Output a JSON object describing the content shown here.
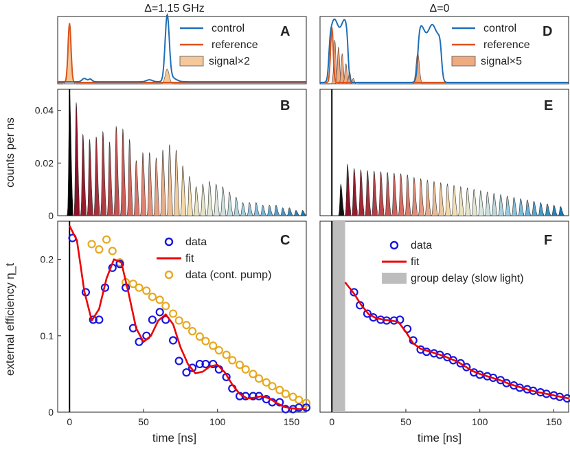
{
  "figure": {
    "titles": {
      "left": "Δ=1.15 GHz",
      "right": "Δ=0"
    },
    "ylabels": {
      "middle": "counts per ns",
      "bottom": "external efficiency η_t"
    },
    "xlabel": "time [ns]"
  },
  "chart_data": [
    {
      "panel": "A",
      "type": "line",
      "title": "Δ=1.15 GHz",
      "xlim": [
        -8,
        160
      ],
      "ylim": [
        0,
        1
      ],
      "legend": [
        "control",
        "reference",
        "signal×2"
      ],
      "legend_position": "top-right",
      "colors": {
        "control": "#1f6fb4",
        "reference": "#d9541a",
        "signal": "#f5c89a"
      },
      "reference_peak_ns": 0,
      "control_peak_ns": 66,
      "signal_peaks_ns": [
        0,
        66
      ]
    },
    {
      "panel": "D",
      "type": "line",
      "title": "Δ=0",
      "xlim": [
        -8,
        160
      ],
      "ylim": [
        0,
        1
      ],
      "legend": [
        "control",
        "reference",
        "signal×5"
      ],
      "legend_position": "top-right",
      "colors": {
        "control": "#1f6fb4",
        "reference": "#d9541a",
        "signal": "#f0aa80"
      },
      "reference_peak_ns": 0,
      "control_pulses_ns": [
        [
          0,
          12
        ],
        [
          58,
          75
        ]
      ]
    },
    {
      "panel": "B",
      "type": "area",
      "xlim": [
        -8,
        160
      ],
      "ylim": [
        0,
        0.048
      ],
      "yticks": [
        0,
        0.02,
        0.04
      ],
      "ytick_labels": [
        "0",
        "0.02",
        "0.04"
      ],
      "ylabel": "counts per ns",
      "peak_spacing_ns": 4.5,
      "peak_x_ns": [
        0,
        4.5,
        9,
        13.5,
        18,
        22.5,
        27,
        31.5,
        36,
        40.5,
        45,
        49.5,
        54,
        58.5,
        63,
        67.5,
        72,
        76.5,
        81,
        85.5,
        90,
        94.5,
        99,
        103.5,
        108,
        112.5,
        117,
        121.5,
        126,
        130.5,
        135,
        139.5,
        144,
        148.5,
        153,
        157.5
      ],
      "peak_values": [
        0.047,
        0.043,
        0.031,
        0.029,
        0.03,
        0.032,
        0.028,
        0.034,
        0.033,
        0.029,
        0.021,
        0.024,
        0.024,
        0.022,
        0.025,
        0.027,
        0.025,
        0.019,
        0.015,
        0.011,
        0.012,
        0.013,
        0.012,
        0.011,
        0.009,
        0.007,
        0.005,
        0.005,
        0.005,
        0.004,
        0.004,
        0.004,
        0.003,
        0.003,
        0.002,
        0.002
      ]
    },
    {
      "panel": "E",
      "type": "area",
      "xlim": [
        -8,
        160
      ],
      "ylim": [
        0,
        0.048
      ],
      "peak_spacing_ns": 4.5,
      "peak_x_ns": [
        6,
        10.5,
        15,
        19.5,
        24,
        28.5,
        33,
        37.5,
        42,
        46.5,
        51,
        55.5,
        60,
        64.5,
        69,
        73.5,
        78,
        82.5,
        87,
        91.5,
        96,
        100.5,
        105,
        109.5,
        114,
        118.5,
        123,
        127.5,
        132,
        136.5,
        141,
        145.5,
        150,
        154.5
      ],
      "peak_values": [
        0.012,
        0.0196,
        0.018,
        0.0175,
        0.0172,
        0.017,
        0.0168,
        0.0165,
        0.0162,
        0.016,
        0.0155,
        0.0145,
        0.014,
        0.0135,
        0.013,
        0.0125,
        0.012,
        0.0115,
        0.011,
        0.0105,
        0.01,
        0.0095,
        0.009,
        0.0085,
        0.008,
        0.0075,
        0.007,
        0.0065,
        0.006,
        0.0055,
        0.005,
        0.0045,
        0.004,
        0.0035
      ]
    },
    {
      "panel": "C",
      "type": "scatter",
      "xlim": [
        -8,
        160
      ],
      "ylim": [
        0,
        0.25
      ],
      "xticks": [
        0,
        50,
        100,
        150
      ],
      "xtick_labels": [
        "0",
        "50",
        "100",
        "150"
      ],
      "yticks": [
        0,
        0.1,
        0.2
      ],
      "ytick_labels": [
        "0",
        "0.1",
        "0.2"
      ],
      "xlabel": "time [ns]",
      "ylabel": "external efficiency η_t",
      "legend_position": "top-right",
      "series": [
        {
          "name": "data",
          "style": "circle",
          "color": "#1515e0",
          "x": [
            2,
            11,
            16,
            20,
            24,
            29,
            34,
            38,
            43,
            47,
            52,
            56,
            61,
            65,
            70,
            74,
            79,
            83,
            88,
            92,
            97,
            101,
            106,
            110,
            115,
            119,
            124,
            128,
            133,
            137,
            142,
            146,
            151,
            155,
            160
          ],
          "y": [
            0.228,
            0.157,
            0.121,
            0.121,
            0.163,
            0.189,
            0.194,
            0.163,
            0.11,
            0.092,
            0.1,
            0.121,
            0.131,
            0.121,
            0.094,
            0.067,
            0.052,
            0.058,
            0.063,
            0.063,
            0.063,
            0.056,
            0.046,
            0.031,
            0.021,
            0.021,
            0.021,
            0.021,
            0.017,
            0.013,
            0.013,
            0.004,
            0.004,
            0.006,
            0.006
          ]
        },
        {
          "name": "fit",
          "style": "line",
          "color": "#ee0000",
          "x": [
            0,
            5,
            10,
            15,
            20,
            25,
            30,
            35,
            40,
            45,
            50,
            55,
            60,
            65,
            70,
            75,
            80,
            85,
            90,
            95,
            100,
            105,
            110,
            115,
            120,
            125,
            130,
            135,
            140,
            145,
            150,
            155,
            160
          ],
          "y": [
            0.244,
            0.225,
            0.158,
            0.12,
            0.135,
            0.175,
            0.2,
            0.196,
            0.155,
            0.11,
            0.092,
            0.1,
            0.12,
            0.128,
            0.115,
            0.085,
            0.063,
            0.051,
            0.053,
            0.06,
            0.062,
            0.052,
            0.036,
            0.024,
            0.018,
            0.019,
            0.021,
            0.018,
            0.012,
            0.007,
            0.005,
            0.004,
            0.004
          ]
        },
        {
          "name": "data (cont. pump)",
          "style": "circle",
          "color": "#e6a820",
          "x": [
            15,
            20,
            25,
            29,
            34,
            38,
            43,
            47,
            52,
            56,
            61,
            65,
            70,
            74,
            79,
            83,
            88,
            92,
            97,
            101,
            106,
            110,
            115,
            119,
            124,
            128,
            133,
            137,
            142,
            146,
            151,
            155,
            160
          ],
          "y": [
            0.22,
            0.213,
            0.226,
            0.211,
            0.196,
            0.17,
            0.168,
            0.163,
            0.159,
            0.151,
            0.147,
            0.139,
            0.129,
            0.12,
            0.114,
            0.106,
            0.099,
            0.093,
            0.087,
            0.081,
            0.075,
            0.068,
            0.062,
            0.056,
            0.05,
            0.044,
            0.039,
            0.034,
            0.029,
            0.024,
            0.02,
            0.016,
            0.012
          ]
        }
      ]
    },
    {
      "panel": "F",
      "type": "scatter",
      "xlim": [
        -8,
        160
      ],
      "ylim": [
        0,
        0.25
      ],
      "xticks": [
        0,
        50,
        100,
        150
      ],
      "xtick_labels": [
        "0",
        "50",
        "100",
        "150"
      ],
      "xlabel": "time [ns]",
      "legend_position": "top-right",
      "group_delay_range_ns": [
        0,
        9
      ],
      "series": [
        {
          "name": "data",
          "style": "circle",
          "color": "#1515e0",
          "x": [
            15,
            19,
            24,
            28,
            33,
            37,
            42,
            46,
            51,
            55,
            60,
            64,
            69,
            73,
            78,
            82,
            87,
            91,
            96,
            100,
            105,
            109,
            114,
            118,
            123,
            127,
            132,
            136,
            141,
            145,
            150,
            154,
            159
          ],
          "y": [
            0.157,
            0.14,
            0.129,
            0.124,
            0.121,
            0.12,
            0.12,
            0.121,
            0.109,
            0.094,
            0.082,
            0.079,
            0.077,
            0.075,
            0.072,
            0.068,
            0.064,
            0.059,
            0.052,
            0.049,
            0.047,
            0.045,
            0.042,
            0.038,
            0.035,
            0.032,
            0.03,
            0.028,
            0.026,
            0.024,
            0.022,
            0.02,
            0.018
          ]
        },
        {
          "name": "fit",
          "style": "line",
          "color": "#ee0000",
          "x": [
            9,
            15,
            20,
            25,
            30,
            35,
            40,
            45,
            50,
            55,
            60,
            65,
            70,
            75,
            80,
            85,
            90,
            95,
            100,
            105,
            110,
            115,
            120,
            125,
            130,
            135,
            140,
            145,
            150,
            155,
            160
          ],
          "y": [
            0.17,
            0.155,
            0.14,
            0.128,
            0.123,
            0.121,
            0.12,
            0.118,
            0.105,
            0.09,
            0.083,
            0.08,
            0.077,
            0.074,
            0.07,
            0.066,
            0.06,
            0.054,
            0.05,
            0.047,
            0.044,
            0.041,
            0.037,
            0.034,
            0.031,
            0.028,
            0.026,
            0.024,
            0.022,
            0.02,
            0.018
          ]
        },
        {
          "name": "group delay (slow light)",
          "style": "patch",
          "color": "#bdbdbd"
        }
      ]
    }
  ]
}
